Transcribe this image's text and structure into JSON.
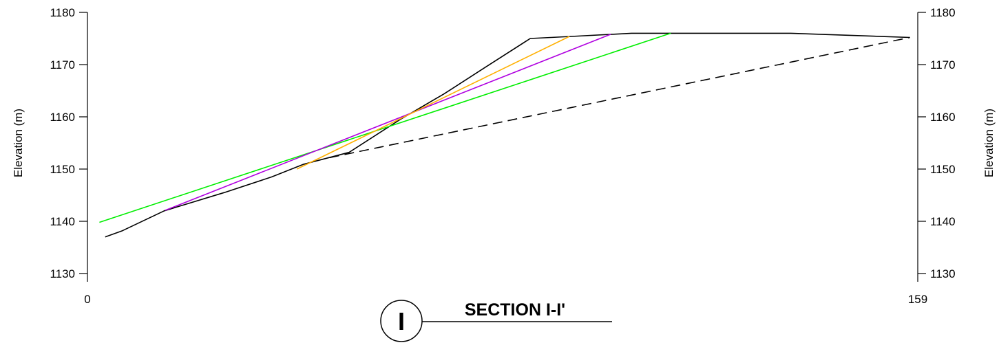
{
  "chart_data": {
    "type": "line",
    "title": "SECTION I-I'",
    "section_marker": "I",
    "xlabel": "",
    "ylabel": "Elevation (m)",
    "ylabel_right": "Elevation (m)",
    "xlim": [
      0,
      159
    ],
    "ylim": [
      1130,
      1180
    ],
    "x_ticks": [
      0,
      159
    ],
    "y_ticks": [
      1130,
      1140,
      1150,
      1160,
      1170,
      1180
    ],
    "grid": false,
    "series": [
      {
        "color": "#000000",
        "style": "solid",
        "points": [
          [
            3.4,
            1137
          ],
          [
            6.7,
            1138.2
          ],
          [
            14.7,
            1142
          ],
          [
            26.2,
            1145.5
          ],
          [
            35.3,
            1148.5
          ],
          [
            41.3,
            1150.9
          ],
          [
            50.1,
            1153.2
          ],
          [
            59.9,
            1159.5
          ],
          [
            68.3,
            1164.4
          ],
          [
            76.2,
            1169.5
          ],
          [
            84.8,
            1175
          ],
          [
            92.7,
            1175.4
          ],
          [
            104.2,
            1176
          ],
          [
            134.7,
            1176
          ],
          [
            157.5,
            1175.2
          ]
        ]
      },
      {
        "color": "#000000",
        "style": "dashed",
        "points": [
          [
            46.4,
            1152.2
          ],
          [
            157.5,
            1175.2
          ]
        ]
      },
      {
        "color": "#00ee00",
        "style": "solid",
        "points": [
          [
            2.3,
            1139.8
          ],
          [
            111.7,
            1176
          ]
        ]
      },
      {
        "color": "#b000e0",
        "style": "solid",
        "points": [
          [
            14.9,
            1142.1
          ],
          [
            100.2,
            1175.8
          ]
        ]
      },
      {
        "color": "#ffb000",
        "style": "solid",
        "points": [
          [
            40.1,
            1150
          ],
          [
            92.3,
            1175.4
          ]
        ]
      }
    ]
  }
}
